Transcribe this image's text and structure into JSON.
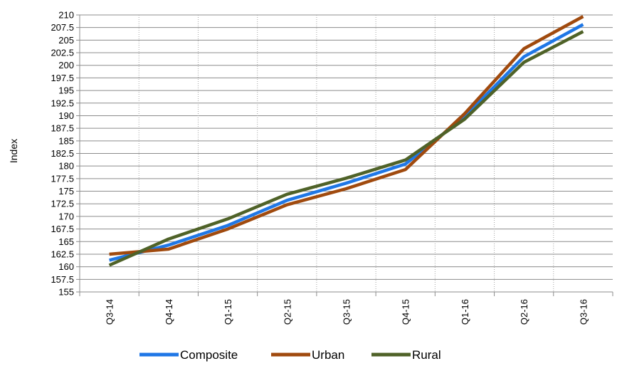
{
  "chart_data": {
    "type": "line",
    "categories": [
      "Q3-14",
      "Q4-14",
      "Q1-15",
      "Q2-15",
      "Q3-15",
      "Q4-15",
      "Q1-16",
      "Q2-16",
      "Q3-16"
    ],
    "series": [
      {
        "name": "Composite",
        "color": "#1F77E6",
        "values": [
          161.3,
          164.3,
          168.2,
          173.2,
          176.6,
          180.4,
          189.8,
          201.7,
          208.1
        ]
      },
      {
        "name": "Urban",
        "color": "#A04A0E",
        "values": [
          162.5,
          163.5,
          167.5,
          172.3,
          175.5,
          179.3,
          190.4,
          203.3,
          209.7
        ]
      },
      {
        "name": "Rural",
        "color": "#4F6228",
        "values": [
          160.3,
          165.5,
          169.5,
          174.4,
          177.6,
          181.2,
          189.3,
          200.6,
          206.7
        ]
      }
    ],
    "ylabel": "Index",
    "xlabel": "",
    "ylim": [
      155,
      210
    ],
    "ytick_step": 2.5,
    "yticks": [
      "155",
      "157.5",
      "160",
      "162.5",
      "165",
      "167.5",
      "170",
      "172.5",
      "175",
      "177.5",
      "180",
      "182.5",
      "185",
      "187.5",
      "190",
      "192.5",
      "195",
      "197.5",
      "200",
      "202.5",
      "205",
      "207.5",
      "210"
    ],
    "grid": {
      "horizontal": "solid",
      "vertical": "dotted"
    },
    "legend_position": "bottom"
  }
}
